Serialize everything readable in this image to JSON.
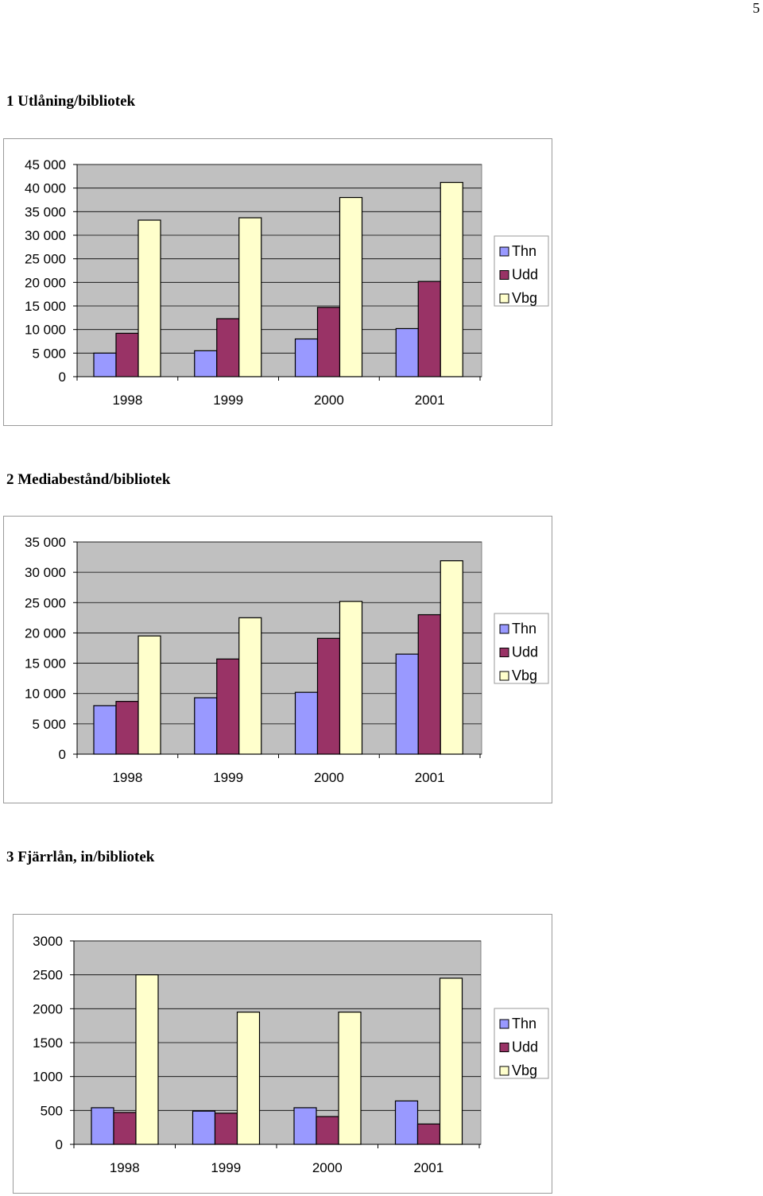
{
  "page_number": "5",
  "charts": [
    {
      "section_title": "1 Utlåning/bibliotek",
      "type": "bar",
      "categories": [
        "1998",
        "1999",
        "2000",
        "2001"
      ],
      "series": [
        {
          "name": "Thn",
          "color": "#9999ff",
          "values": [
            5000,
            5500,
            8000,
            10200
          ]
        },
        {
          "name": "Udd",
          "color": "#993366",
          "values": [
            9200,
            12300,
            14700,
            20200
          ]
        },
        {
          "name": "Vbg",
          "color": "#ffffcc",
          "values": [
            33200,
            33700,
            38000,
            41200
          ]
        }
      ],
      "ylim": [
        0,
        45000
      ],
      "yticks": [
        0,
        5000,
        10000,
        15000,
        20000,
        25000,
        30000,
        35000,
        40000,
        45000
      ],
      "ytick_labels": [
        "0",
        "5 000",
        "10 000",
        "15 000",
        "20 000",
        "25 000",
        "30 000",
        "35 000",
        "40 000",
        "45 000"
      ],
      "legend_position": "right",
      "grid": true,
      "plot_background": "#c0c0c0"
    },
    {
      "section_title": "2 Mediabestånd/bibliotek",
      "type": "bar",
      "categories": [
        "1998",
        "1999",
        "2000",
        "2001"
      ],
      "series": [
        {
          "name": "Thn",
          "color": "#9999ff",
          "values": [
            8000,
            9300,
            10200,
            16500
          ]
        },
        {
          "name": "Udd",
          "color": "#993366",
          "values": [
            8700,
            15700,
            19100,
            23000
          ]
        },
        {
          "name": "Vbg",
          "color": "#ffffcc",
          "values": [
            19500,
            22500,
            25200,
            31900
          ]
        }
      ],
      "ylim": [
        0,
        35000
      ],
      "yticks": [
        0,
        5000,
        10000,
        15000,
        20000,
        25000,
        30000,
        35000
      ],
      "ytick_labels": [
        "0",
        "5 000",
        "10 000",
        "15 000",
        "20 000",
        "25 000",
        "30 000",
        "35 000"
      ],
      "legend_position": "right",
      "grid": true,
      "plot_background": "#c0c0c0"
    },
    {
      "section_title": "3 Fjärrlån, in/bibliotek",
      "type": "bar",
      "categories": [
        "1998",
        "1999",
        "2000",
        "2001"
      ],
      "series": [
        {
          "name": "Thn",
          "color": "#9999ff",
          "values": [
            540,
            490,
            540,
            640
          ]
        },
        {
          "name": "Udd",
          "color": "#993366",
          "values": [
            470,
            460,
            410,
            300
          ]
        },
        {
          "name": "Vbg",
          "color": "#ffffcc",
          "values": [
            2500,
            1950,
            1950,
            2450
          ]
        }
      ],
      "ylim": [
        0,
        3000
      ],
      "yticks": [
        0,
        500,
        1000,
        1500,
        2000,
        2500,
        3000
      ],
      "ytick_labels": [
        "0",
        "500",
        "1000",
        "1500",
        "2000",
        "2500",
        "3000"
      ],
      "legend_position": "right",
      "grid": true,
      "plot_background": "#c0c0c0"
    }
  ]
}
